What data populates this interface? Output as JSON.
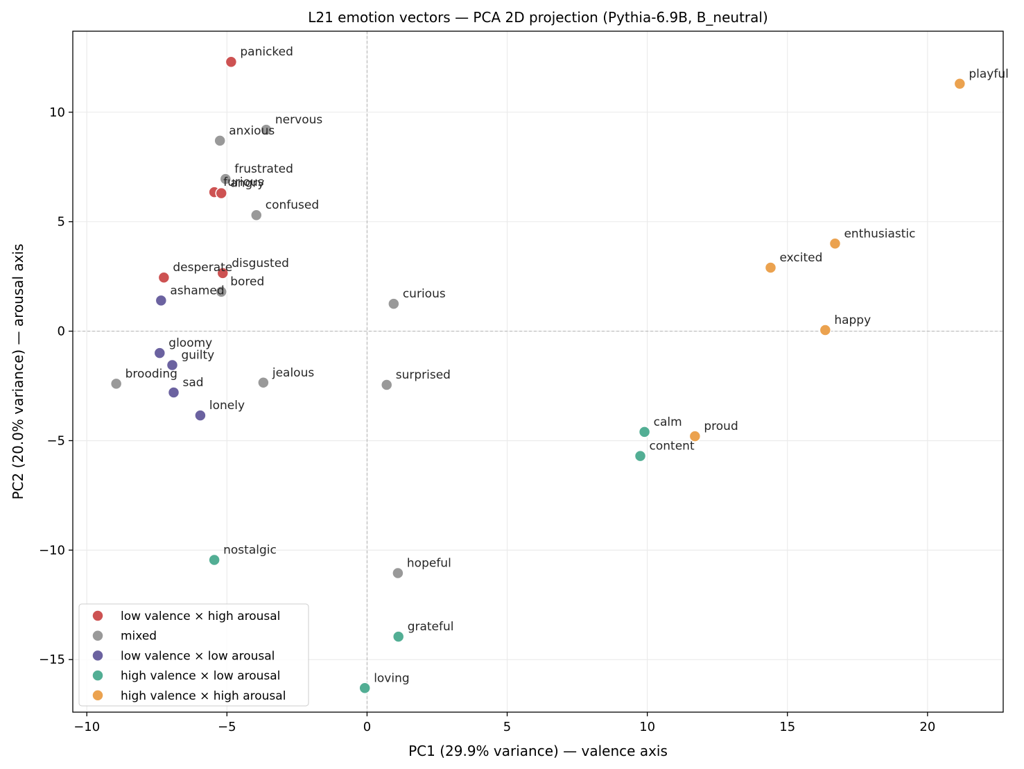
{
  "chart_data": {
    "type": "scatter",
    "title": "L21 emotion vectors — PCA 2D projection (Pythia-6.9B, B_neutral)",
    "xlabel": "PC1 (29.9% variance) — valence axis",
    "ylabel": "PC2 (20.0% variance) — arousal axis",
    "xlim": [
      -10.5,
      22.7
    ],
    "ylim": [
      -17.4,
      13.7
    ],
    "xticks": [
      -10,
      -5,
      0,
      5,
      10,
      15,
      20
    ],
    "yticks": [
      -15,
      -10,
      -5,
      0,
      5,
      10
    ],
    "xtick_labels": [
      "−10",
      "−5",
      "0",
      "5",
      "10",
      "15",
      "20"
    ],
    "ytick_labels": [
      "−15",
      "−10",
      "−5",
      "0",
      "5",
      "10"
    ],
    "grid": true,
    "reference_lines": {
      "x": 0,
      "y": 0
    },
    "legend_position": "lower-left",
    "series": [
      {
        "name": "low valence × high arousal",
        "color": "#cd5252",
        "points": [
          {
            "label": "panicked",
            "x": -4.85,
            "y": 12.3
          },
          {
            "label": "furious",
            "x": -5.45,
            "y": 6.35
          },
          {
            "label": "angry",
            "x": -5.2,
            "y": 6.3
          },
          {
            "label": "desperate",
            "x": -7.25,
            "y": 2.45
          },
          {
            "label": "disgusted",
            "x": -5.15,
            "y": 2.65
          }
        ]
      },
      {
        "name": "mixed",
        "color": "#999999",
        "points": [
          {
            "label": "nervous",
            "x": -3.6,
            "y": 9.2
          },
          {
            "label": "anxious",
            "x": -5.25,
            "y": 8.7
          },
          {
            "label": "frustrated",
            "x": -5.05,
            "y": 6.95
          },
          {
            "label": "confused",
            "x": -3.95,
            "y": 5.3
          },
          {
            "label": "bored",
            "x": -5.2,
            "y": 1.8
          },
          {
            "label": "curious",
            "x": 0.95,
            "y": 1.25
          },
          {
            "label": "brooding",
            "x": -8.95,
            "y": -2.4
          },
          {
            "label": "jealous",
            "x": -3.7,
            "y": -2.35
          },
          {
            "label": "surprised",
            "x": 0.7,
            "y": -2.45
          },
          {
            "label": "hopeful",
            "x": 1.1,
            "y": -11.05
          }
        ]
      },
      {
        "name": "low valence × low arousal",
        "color": "#6b62a0",
        "points": [
          {
            "label": "ashamed",
            "x": -7.35,
            "y": 1.4
          },
          {
            "label": "gloomy",
            "x": -7.4,
            "y": -1.0
          },
          {
            "label": "guilty",
            "x": -6.95,
            "y": -1.55
          },
          {
            "label": "sad",
            "x": -6.9,
            "y": -2.8
          },
          {
            "label": "lonely",
            "x": -5.95,
            "y": -3.85
          }
        ]
      },
      {
        "name": "high valence × low arousal",
        "color": "#52ae94",
        "points": [
          {
            "label": "calm",
            "x": 9.9,
            "y": -4.6
          },
          {
            "label": "content",
            "x": 9.75,
            "y": -5.7
          },
          {
            "label": "nostalgic",
            "x": -5.45,
            "y": -10.45
          },
          {
            "label": "grateful",
            "x": 1.12,
            "y": -13.95
          },
          {
            "label": "loving",
            "x": -0.08,
            "y": -16.3
          }
        ]
      },
      {
        "name": "high valence × high arousal",
        "color": "#eba24f",
        "points": [
          {
            "label": "playful",
            "x": 21.15,
            "y": 11.3
          },
          {
            "label": "enthusiastic",
            "x": 16.7,
            "y": 4.0
          },
          {
            "label": "excited",
            "x": 14.4,
            "y": 2.9
          },
          {
            "label": "happy",
            "x": 16.35,
            "y": 0.05
          },
          {
            "label": "proud",
            "x": 11.7,
            "y": -4.8
          }
        ]
      }
    ]
  }
}
